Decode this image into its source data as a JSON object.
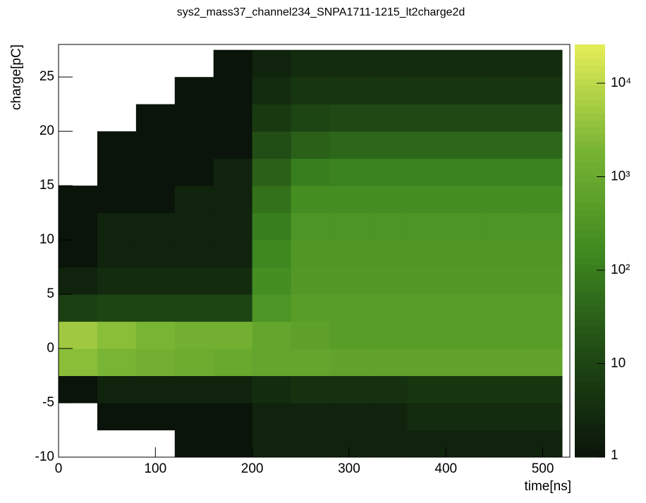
{
  "chart_data": {
    "type": "heatmap",
    "title": "sys2_mass37_channel234_SNPA1711-1215_lt2charge2d",
    "x_label": "time[ns]",
    "y_label": "charge[pC]",
    "xbins": [
      0,
      40,
      80,
      120,
      160,
      200,
      240,
      280,
      320,
      360,
      400,
      440,
      480,
      520
    ],
    "ybins": [
      -10,
      -7.5,
      -5,
      -2.5,
      0,
      2.5,
      5,
      7.5,
      10,
      12.5,
      15,
      17.5,
      20,
      22.5,
      25,
      27.5
    ],
    "z": [
      [
        0,
        0,
        0,
        1,
        1,
        2,
        2,
        2,
        2,
        2,
        2,
        2,
        2
      ],
      [
        0,
        1,
        1,
        1,
        1,
        2,
        2,
        2,
        2,
        3,
        3,
        3,
        3
      ],
      [
        1,
        2,
        2,
        2,
        2,
        3,
        4,
        4,
        4,
        5,
        5,
        5,
        5
      ],
      [
        3000,
        2000,
        1500,
        1200,
        1000,
        800,
        800,
        700,
        700,
        700,
        700,
        700,
        700
      ],
      [
        5000,
        3000,
        2000,
        1500,
        1500,
        800,
        600,
        500,
        500,
        500,
        500,
        500,
        500
      ],
      [
        8,
        10,
        10,
        10,
        10,
        300,
        500,
        500,
        500,
        500,
        500,
        500,
        500
      ],
      [
        2,
        3,
        3,
        3,
        3,
        200,
        400,
        400,
        400,
        400,
        400,
        400,
        400
      ],
      [
        1,
        2,
        2,
        2,
        2,
        150,
        350,
        350,
        350,
        350,
        350,
        350,
        350
      ],
      [
        1,
        2,
        2,
        2,
        2,
        100,
        300,
        300,
        300,
        300,
        300,
        300,
        300
      ],
      [
        1,
        1,
        1,
        2,
        2,
        60,
        200,
        200,
        200,
        200,
        200,
        200,
        200
      ],
      [
        0,
        1,
        1,
        1,
        2,
        30,
        100,
        120,
        120,
        120,
        120,
        120,
        120
      ],
      [
        0,
        1,
        1,
        1,
        1,
        15,
        30,
        40,
        40,
        40,
        40,
        40,
        40
      ],
      [
        0,
        0,
        1,
        1,
        1,
        6,
        10,
        12,
        12,
        12,
        12,
        12,
        12
      ],
      [
        0,
        0,
        0,
        1,
        1,
        3,
        5,
        5,
        5,
        5,
        5,
        5,
        5
      ],
      [
        0,
        0,
        0,
        0,
        1,
        2,
        3,
        3,
        3,
        3,
        3,
        3,
        3
      ]
    ],
    "xlim": [
      0,
      528
    ],
    "xticks": [
      0,
      100,
      200,
      300,
      400,
      500
    ],
    "ylim": [
      -10,
      28
    ],
    "yticks": [
      -10,
      -5,
      0,
      5,
      10,
      15,
      20,
      25
    ],
    "zlim": [
      1,
      26000
    ],
    "zlog": true,
    "zticks": [
      1,
      10,
      {
        "value": 100,
        "label": "10²"
      },
      {
        "value": 1000,
        "label": "10³"
      },
      {
        "value": 10000,
        "label": "10⁴"
      }
    ],
    "palette": [
      "#0a140a",
      "#1f4a14",
      "#3f8a20",
      "#7ab534",
      "#e6ee58"
    ]
  }
}
